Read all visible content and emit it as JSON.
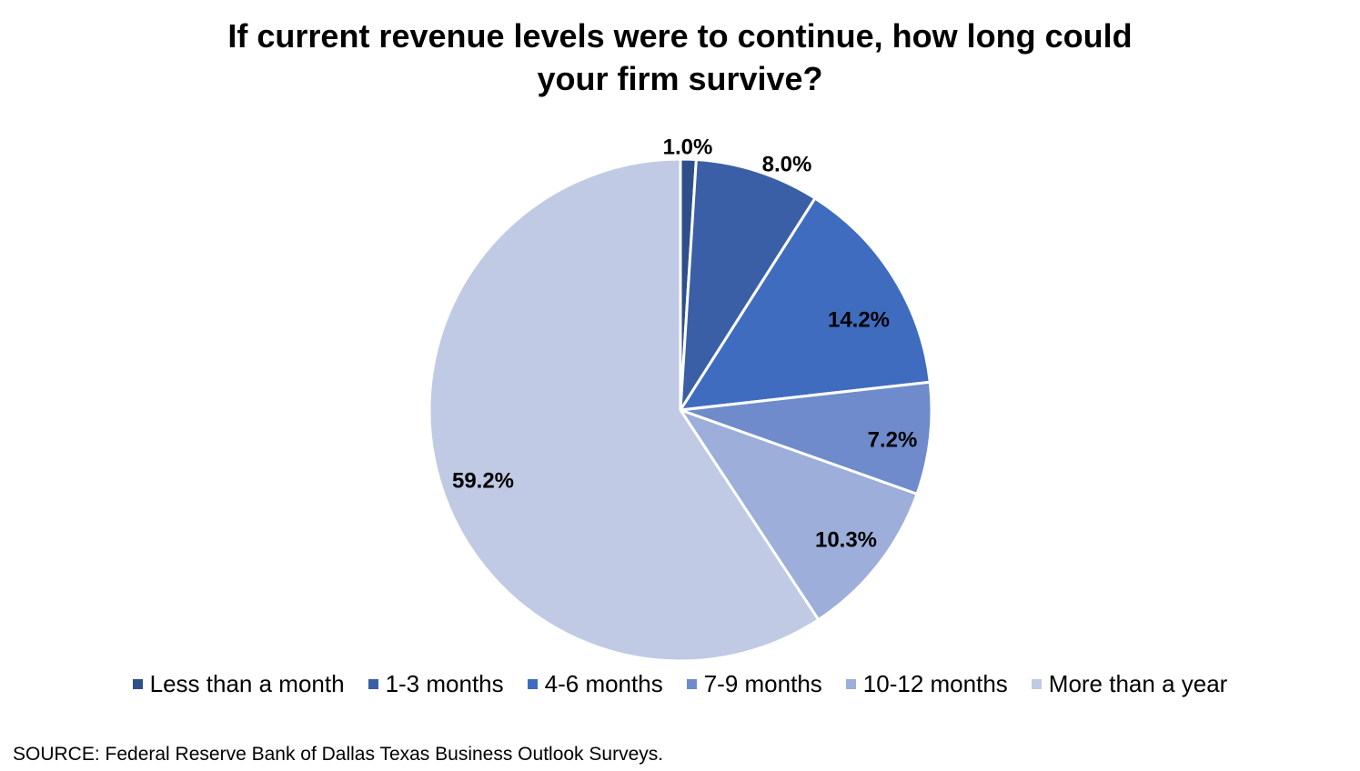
{
  "chart_data": {
    "type": "pie",
    "title_lines": [
      "If current revenue levels were to continue, how long could",
      "your firm survive?"
    ],
    "categories": [
      "Less than a month",
      "1-3 months",
      "4-6 months",
      "7-9 months",
      "10-12 months",
      "More than a year"
    ],
    "values": [
      1.0,
      8.0,
      14.2,
      7.2,
      10.3,
      59.2
    ],
    "data_labels": [
      "1.0%",
      "8.0%",
      "14.2%",
      "7.2%",
      "10.3%",
      "59.2%"
    ],
    "colors": [
      "#2e4f8a",
      "#3a5fa6",
      "#3f6cbf",
      "#6f8bcc",
      "#9caed9",
      "#c0cae4"
    ],
    "legend_position": "bottom"
  },
  "source_note": "SOURCE: Federal Reserve Bank of Dallas Texas Business Outlook Surveys."
}
